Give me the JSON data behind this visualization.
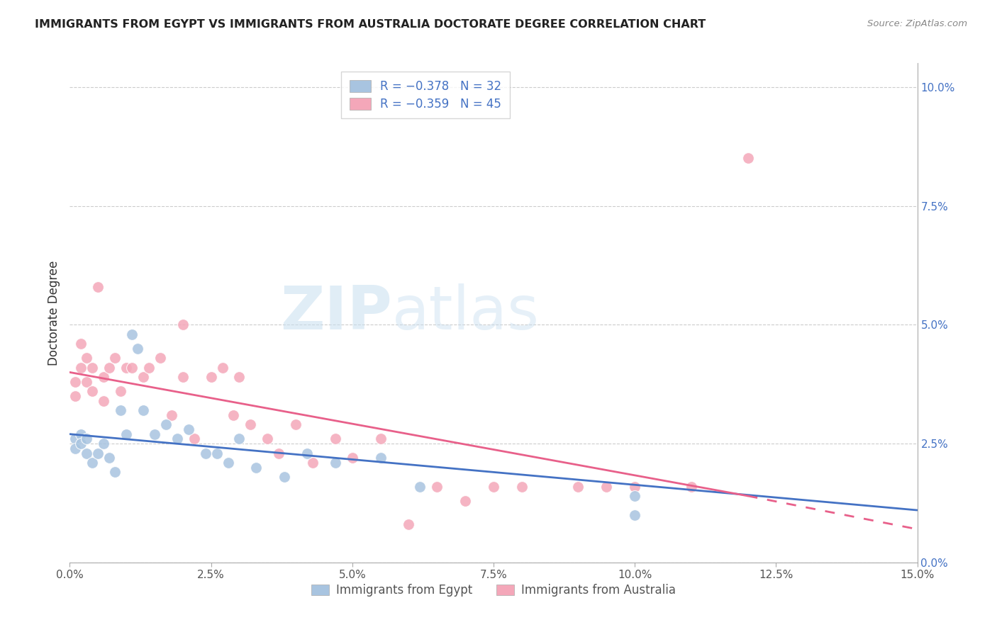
{
  "title": "IMMIGRANTS FROM EGYPT VS IMMIGRANTS FROM AUSTRALIA DOCTORATE DEGREE CORRELATION CHART",
  "source": "Source: ZipAtlas.com",
  "ylabel": "Doctorate Degree",
  "xlim": [
    0.0,
    0.15
  ],
  "ylim": [
    0.0,
    0.105
  ],
  "xticks": [
    0.0,
    0.025,
    0.05,
    0.075,
    0.1,
    0.125,
    0.15
  ],
  "xtick_labels": [
    "0.0%",
    "2.5%",
    "5.0%",
    "7.5%",
    "10.0%",
    "12.5%",
    "15.0%"
  ],
  "yticks_right": [
    0.0,
    0.025,
    0.05,
    0.075,
    0.1
  ],
  "ytick_labels_right": [
    "0.0%",
    "2.5%",
    "5.0%",
    "7.5%",
    "10.0%"
  ],
  "egypt_color": "#a8c4e0",
  "australia_color": "#f4a7b9",
  "egypt_line_color": "#4472c4",
  "australia_line_color": "#e8608a",
  "egypt_line_x0": 0.0,
  "egypt_line_y0": 0.027,
  "egypt_line_x1": 0.15,
  "egypt_line_y1": 0.011,
  "australia_line_x0": 0.0,
  "australia_line_y0": 0.04,
  "australia_line_x1": 0.12,
  "australia_line_y1": 0.014,
  "australia_line_dashed_x0": 0.12,
  "australia_line_dashed_y0": 0.014,
  "australia_line_dashed_x1": 0.15,
  "australia_line_dashed_y1": 0.007,
  "legend_egypt_label": "R = −0.378   N = 32",
  "legend_australia_label": "R = −0.359   N = 45",
  "bottom_legend_egypt": "Immigrants from Egypt",
  "bottom_legend_australia": "Immigrants from Australia",
  "watermark_zip": "ZIP",
  "watermark_atlas": "atlas",
  "egypt_x": [
    0.001,
    0.001,
    0.002,
    0.002,
    0.003,
    0.003,
    0.004,
    0.005,
    0.006,
    0.007,
    0.008,
    0.009,
    0.01,
    0.011,
    0.012,
    0.013,
    0.015,
    0.017,
    0.019,
    0.021,
    0.024,
    0.026,
    0.028,
    0.03,
    0.033,
    0.038,
    0.042,
    0.047,
    0.055,
    0.062,
    0.1,
    0.1
  ],
  "egypt_y": [
    0.026,
    0.024,
    0.027,
    0.025,
    0.026,
    0.023,
    0.021,
    0.023,
    0.025,
    0.022,
    0.019,
    0.032,
    0.027,
    0.048,
    0.045,
    0.032,
    0.027,
    0.029,
    0.026,
    0.028,
    0.023,
    0.023,
    0.021,
    0.026,
    0.02,
    0.018,
    0.023,
    0.021,
    0.022,
    0.016,
    0.014,
    0.01
  ],
  "australia_x": [
    0.001,
    0.001,
    0.002,
    0.002,
    0.003,
    0.003,
    0.004,
    0.004,
    0.005,
    0.006,
    0.006,
    0.007,
    0.008,
    0.009,
    0.01,
    0.011,
    0.013,
    0.014,
    0.016,
    0.018,
    0.02,
    0.022,
    0.025,
    0.027,
    0.029,
    0.03,
    0.032,
    0.035,
    0.037,
    0.04,
    0.043,
    0.047,
    0.05,
    0.055,
    0.06,
    0.065,
    0.07,
    0.075,
    0.08,
    0.09,
    0.095,
    0.1,
    0.11,
    0.12,
    0.02
  ],
  "australia_y": [
    0.038,
    0.035,
    0.046,
    0.041,
    0.043,
    0.038,
    0.041,
    0.036,
    0.058,
    0.039,
    0.034,
    0.041,
    0.043,
    0.036,
    0.041,
    0.041,
    0.039,
    0.041,
    0.043,
    0.031,
    0.039,
    0.026,
    0.039,
    0.041,
    0.031,
    0.039,
    0.029,
    0.026,
    0.023,
    0.029,
    0.021,
    0.026,
    0.022,
    0.026,
    0.008,
    0.016,
    0.013,
    0.016,
    0.016,
    0.016,
    0.016,
    0.016,
    0.016,
    0.085,
    0.05
  ]
}
